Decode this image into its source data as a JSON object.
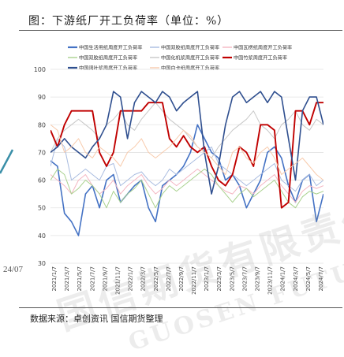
{
  "figure": {
    "title": "图：下游纸厂开工负荷率（单位：%）",
    "source": "数据来源：卓创资讯 国信期货整理",
    "side_fragment": "24/07",
    "watermark_cn": "国信期货有限责任公司",
    "watermark_en": "GUOSEN FUTURES CO.,LTD."
  },
  "chart_data": {
    "type": "line",
    "title": "",
    "xlabel": "",
    "ylabel": "",
    "ylim": [
      30,
      100
    ],
    "yticks": [
      30,
      40,
      50,
      60,
      70,
      80,
      90,
      100
    ],
    "grid": true,
    "legend_position": "top",
    "x_ticks": [
      "2021/1/7",
      "2021/3/7",
      "2021/5/7",
      "2021/7/7",
      "2021/9/7",
      "2021/11/7",
      "2022/1/7",
      "2022/3/7",
      "2022/5/7",
      "2022/7/7",
      "2022/9/7",
      "2022/11/7",
      "2023/1/7",
      "2023/3/7",
      "2023/5/7",
      "2023/7/7",
      "2023/9/7",
      "2023/11/7",
      "2024/1/7",
      "2024/3/7",
      "2024/5/7",
      "2024/7/7"
    ],
    "series": [
      {
        "name": "中国生活用纸周度开工负荷率",
        "color": "#4472c4",
        "width": 1.6,
        "values": [
          67,
          65,
          48,
          45,
          40,
          55,
          58,
          50,
          60,
          62,
          52,
          55,
          58,
          60,
          50,
          45,
          58,
          60,
          62,
          65,
          70,
          80,
          75,
          70,
          68,
          60,
          62,
          58,
          50,
          55,
          60,
          70,
          72,
          68,
          58,
          52,
          60,
          62,
          45,
          55
        ]
      },
      {
        "name": "中国双胶纸周度开工负荷率",
        "color": "#a9bce0",
        "width": 1.0,
        "values": [
          65,
          75,
          72,
          60,
          62,
          64,
          62,
          60,
          65,
          66,
          58,
          60,
          62,
          63,
          60,
          58,
          60,
          64,
          62,
          64,
          66,
          68,
          70,
          72,
          66,
          64,
          62,
          60,
          58,
          60,
          62,
          64,
          66,
          60,
          58,
          56,
          60,
          62,
          58,
          60
        ]
      },
      {
        "name": "中国瓦楞纸周度开工负荷率",
        "color": "#f4b6c2",
        "width": 1.0,
        "values": [
          62,
          60,
          58,
          55,
          60,
          62,
          58,
          55,
          57,
          60,
          55,
          58,
          60,
          62,
          58,
          55,
          57,
          60,
          58,
          60,
          62,
          64,
          62,
          60,
          58,
          56,
          55,
          58,
          57,
          55,
          58,
          60,
          62,
          58,
          55,
          52,
          56,
          58,
          57,
          58
        ]
      },
      {
        "name": "中国双胶纸周度开工负荷率",
        "color": "#a9d18e",
        "width": 1.0,
        "values": [
          60,
          64,
          62,
          55,
          57,
          60,
          58,
          55,
          50,
          56,
          52,
          55,
          57,
          60,
          55,
          50,
          55,
          58,
          56,
          58,
          60,
          62,
          64,
          62,
          58,
          55,
          52,
          55,
          57,
          54,
          56,
          58,
          60,
          56,
          52,
          50,
          54,
          56,
          55,
          56
        ]
      },
      {
        "name": "中国化机浆周度开工负荷率",
        "color": "#c8c8c8",
        "width": 1.0,
        "values": [
          70,
          75,
          78,
          80,
          82,
          80,
          78,
          75,
          80,
          82,
          85,
          80,
          78,
          82,
          85,
          88,
          85,
          82,
          80,
          78,
          75,
          72,
          70,
          68,
          72,
          75,
          78,
          80,
          82,
          85,
          80,
          78,
          75,
          80,
          82,
          85,
          80,
          78,
          82,
          80
        ]
      },
      {
        "name": "中国竹浆周度开工负荷率",
        "color": "#c00000",
        "width": 1.9,
        "values": [
          78,
          72,
          80,
          85,
          85,
          85,
          85,
          70,
          65,
          70,
          85,
          85,
          85,
          85,
          88,
          88,
          88,
          75,
          72,
          76,
          72,
          70,
          72,
          65,
          60,
          58,
          62,
          72,
          70,
          65,
          80,
          80,
          78,
          50,
          52,
          85,
          85,
          80,
          88,
          88
        ]
      },
      {
        "name": "中国阔叶浆周度开工负荷率",
        "color": "#2f4f8f",
        "width": 1.6,
        "values": [
          70,
          72,
          75,
          72,
          70,
          68,
          72,
          75,
          80,
          92,
          90,
          75,
          88,
          92,
          90,
          88,
          92,
          90,
          85,
          88,
          90,
          92,
          70,
          55,
          65,
          80,
          90,
          92,
          88,
          90,
          92,
          88,
          92,
          90,
          75,
          60,
          85,
          90,
          90,
          80
        ]
      },
      {
        "name": "中国白卡纸周度开工负荷率",
        "color": "#f8cbad",
        "width": 1.0,
        "values": [
          80,
          78,
          70,
          72,
          75,
          70,
          68,
          72,
          70,
          68,
          65,
          70,
          72,
          75,
          70,
          68,
          70,
          72,
          75,
          78,
          76,
          72,
          70,
          68,
          65,
          62,
          70,
          72,
          68,
          66,
          70,
          72,
          68,
          62,
          64,
          66,
          68,
          65,
          62,
          60
        ]
      }
    ]
  }
}
